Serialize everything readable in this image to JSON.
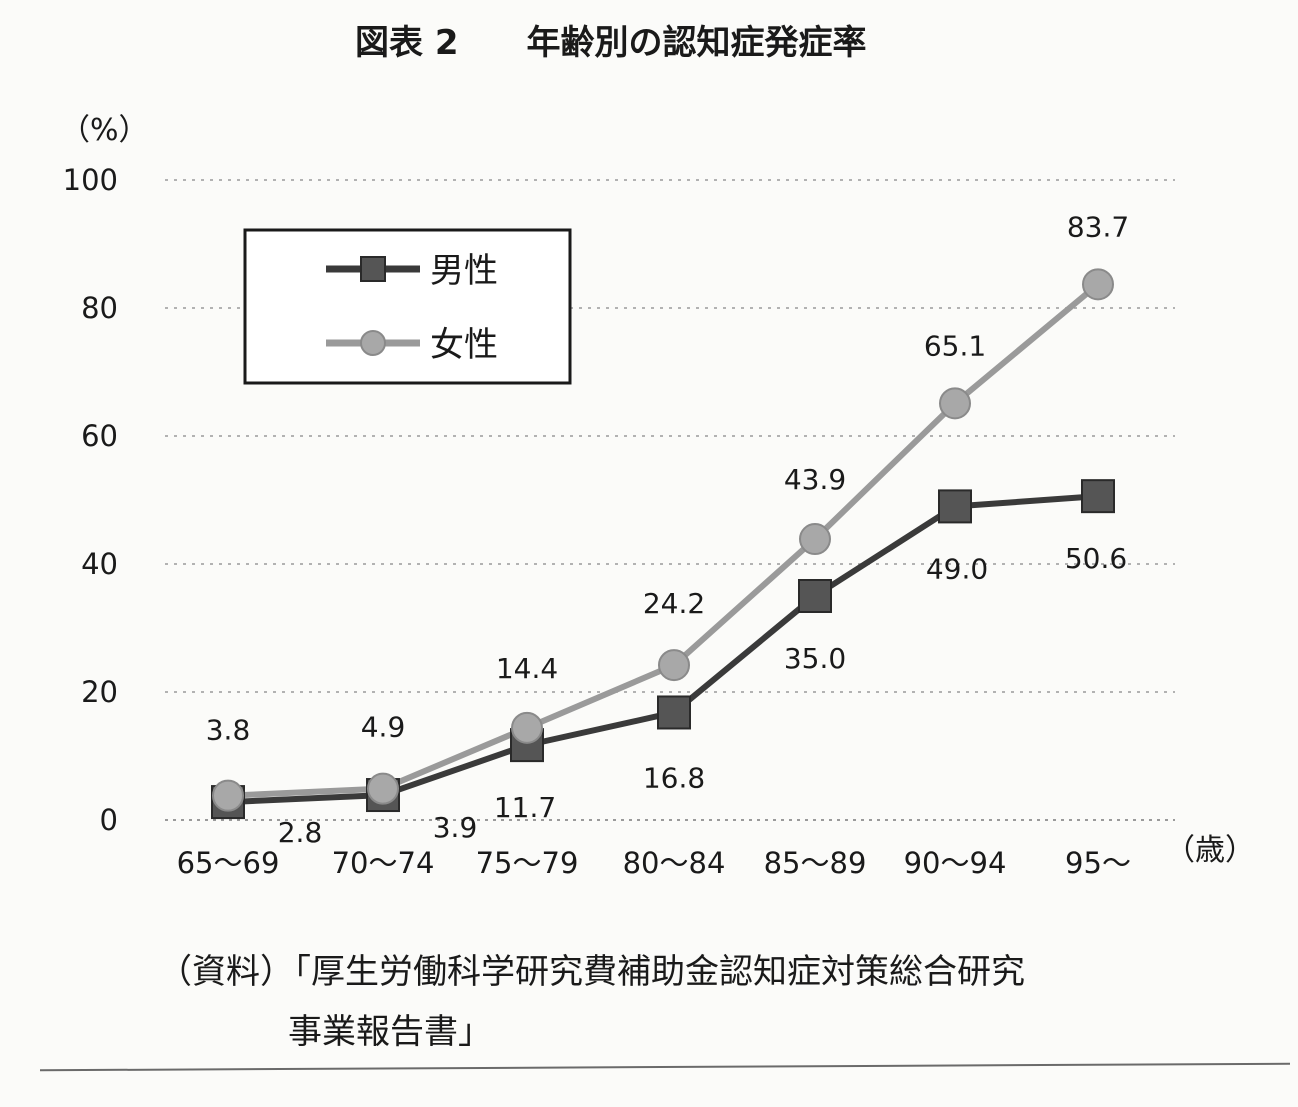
{
  "chart_data": {
    "type": "line",
    "title": "図表 2　　年齢別の認知症発症率",
    "unit_label": "（%）",
    "x_unit_label": "（歳）",
    "categories": [
      "65～69",
      "70～74",
      "75～79",
      "80～84",
      "85～89",
      "90～94",
      "95～"
    ],
    "series": [
      {
        "name": "男性",
        "marker": "square",
        "color": "#3a3a3a",
        "values": [
          2.8,
          3.9,
          11.7,
          16.8,
          35.0,
          49.0,
          50.6
        ],
        "labels": [
          "2.8",
          "3.9",
          "11.7",
          "16.8",
          "35.0",
          "49.0",
          "50.6"
        ]
      },
      {
        "name": "女性",
        "marker": "circle",
        "color": "#9a9a9a",
        "values": [
          3.8,
          4.9,
          14.4,
          24.2,
          43.9,
          65.1,
          83.7
        ],
        "labels": [
          "3.8",
          "4.9",
          "14.4",
          "24.2",
          "43.9",
          "65.1",
          "83.7"
        ]
      }
    ],
    "ylim": [
      0,
      100
    ],
    "yticks": [
      "0",
      "20",
      "40",
      "60",
      "80",
      "100"
    ],
    "grid": true,
    "legend_position": "top-left"
  },
  "source": {
    "line1": "（資料）「厚生労働科学研究費補助金認知症対策総合研究",
    "line2": "事業報告書」"
  }
}
